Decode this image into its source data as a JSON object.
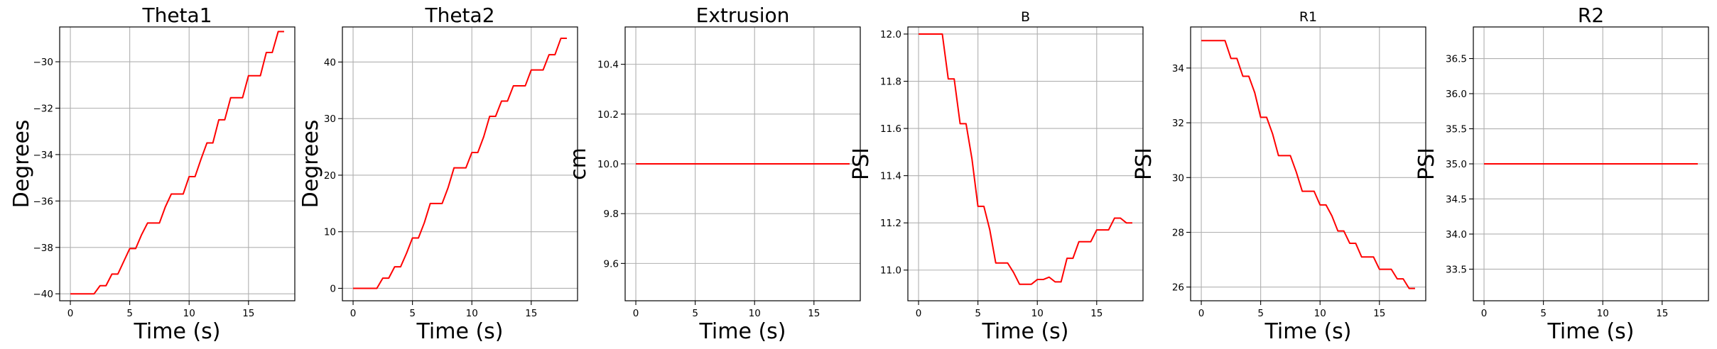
{
  "colors": {
    "series": "#ff0000",
    "grid": "#b0b0b0",
    "frame": "#000000"
  },
  "chart_data": [
    {
      "type": "line",
      "title": "Theta1",
      "xlabel": "Time (s)",
      "ylabel": "Degrees",
      "xlim": [
        -0.9,
        18.9
      ],
      "ylim": [
        -40.3,
        -28.5
      ],
      "xticks": [
        0,
        5,
        10,
        15
      ],
      "yticks": [
        -40,
        -38,
        -36,
        -34,
        -32,
        -30
      ],
      "grid": true,
      "series": [
        {
          "x": [
            0,
            1,
            2,
            2.5,
            3,
            3.5,
            4,
            4.5,
            5,
            5.5,
            6,
            6.5,
            7,
            7.5,
            8,
            8.5,
            9,
            9.5,
            10,
            10.5,
            11,
            11.5,
            12,
            12.5,
            13,
            13.5,
            14,
            14.5,
            15,
            15.5,
            16,
            16.5,
            17,
            17.5,
            18
          ],
          "y": [
            -40,
            -40,
            -40,
            -39.65,
            -39.65,
            -39.15,
            -39.15,
            -38.6,
            -38.05,
            -38.05,
            -37.45,
            -36.95,
            -36.95,
            -36.95,
            -36.25,
            -35.7,
            -35.7,
            -35.7,
            -34.95,
            -34.95,
            -34.2,
            -33.5,
            -33.5,
            -32.5,
            -32.5,
            -31.55,
            -31.55,
            -31.55,
            -30.6,
            -30.6,
            -30.6,
            -29.6,
            -29.6,
            -28.7,
            -28.7
          ]
        }
      ]
    },
    {
      "type": "line",
      "title": "Theta2",
      "xlabel": "Time (s)",
      "ylabel": "Degrees",
      "xlim": [
        -0.9,
        18.9
      ],
      "ylim": [
        -2.2,
        46.2
      ],
      "xticks": [
        0,
        5,
        10,
        15
      ],
      "yticks": [
        0,
        10,
        20,
        30,
        40
      ],
      "grid": true,
      "series": [
        {
          "x": [
            0,
            1,
            2,
            2.5,
            3,
            3.5,
            4,
            4.5,
            5,
            5.5,
            6,
            6.5,
            7,
            7.5,
            8,
            8.5,
            9,
            9.5,
            10,
            10.5,
            11,
            11.5,
            12,
            12.5,
            13,
            13.5,
            14,
            14.5,
            15,
            15.5,
            16,
            16.5,
            17,
            17.5,
            18
          ],
          "y": [
            0,
            0,
            0,
            1.8,
            1.8,
            3.8,
            3.8,
            6.2,
            8.9,
            8.9,
            11.6,
            15,
            15,
            15,
            17.8,
            21.3,
            21.3,
            21.3,
            24,
            24,
            26.8,
            30.4,
            30.4,
            33.1,
            33.1,
            35.8,
            35.8,
            35.8,
            38.6,
            38.6,
            38.6,
            41.3,
            41.3,
            44.2,
            44.2
          ]
        }
      ]
    },
    {
      "type": "line",
      "title": "Extrusion",
      "xlabel": "Time (s)",
      "ylabel": "cm",
      "xlim": [
        -0.9,
        18.9
      ],
      "ylim": [
        9.45,
        10.55
      ],
      "xticks": [
        0,
        5,
        10,
        15
      ],
      "yticks": [
        9.6,
        9.8,
        10.0,
        10.2,
        10.4
      ],
      "ytick_labels": [
        "9.6",
        "9.8",
        "10.0",
        "10.2",
        "10.4"
      ],
      "grid": true,
      "series": [
        {
          "x": [
            0,
            18
          ],
          "y": [
            10,
            10
          ]
        }
      ]
    },
    {
      "type": "line",
      "title": "B",
      "xlabel": "Time (s)",
      "ylabel": "PSI",
      "xlim": [
        -0.9,
        18.9
      ],
      "ylim": [
        10.87,
        12.03
      ],
      "xticks": [
        0,
        5,
        10,
        15
      ],
      "yticks": [
        11.0,
        11.2,
        11.4,
        11.6,
        11.8,
        12.0
      ],
      "ytick_labels": [
        "11.0",
        "11.2",
        "11.4",
        "11.6",
        "11.8",
        "12.0"
      ],
      "grid": true,
      "series": [
        {
          "x": [
            0,
            1,
            2,
            2.5,
            3,
            3.5,
            4,
            4.5,
            5,
            5.5,
            6,
            6.5,
            7,
            7.5,
            8,
            8.5,
            9,
            9.5,
            10,
            10.5,
            11,
            11.5,
            12,
            12.5,
            13,
            13.5,
            14,
            14.5,
            15,
            15.5,
            16,
            16.5,
            17,
            17.5,
            18
          ],
          "y": [
            12,
            12,
            12,
            11.81,
            11.81,
            11.62,
            11.62,
            11.47,
            11.27,
            11.27,
            11.17,
            11.03,
            11.03,
            11.03,
            10.99,
            10.94,
            10.94,
            10.94,
            10.96,
            10.96,
            10.97,
            10.95,
            10.95,
            11.05,
            11.05,
            11.12,
            11.12,
            11.12,
            11.17,
            11.17,
            11.17,
            11.22,
            11.22,
            11.2,
            11.2
          ]
        }
      ]
    },
    {
      "type": "line",
      "title": "R1",
      "xlabel": "Time (s)",
      "ylabel": "PSI",
      "xlim": [
        -0.9,
        18.9
      ],
      "ylim": [
        25.5,
        35.5
      ],
      "xticks": [
        0,
        5,
        10,
        15
      ],
      "yticks": [
        26,
        28,
        30,
        32,
        34
      ],
      "grid": true,
      "series": [
        {
          "x": [
            0,
            1,
            2,
            2.5,
            3,
            3.5,
            4,
            4.5,
            5,
            5.5,
            6,
            6.5,
            7,
            7.5,
            8,
            8.5,
            9,
            9.5,
            10,
            10.5,
            11,
            11.5,
            12,
            12.5,
            13,
            13.5,
            14,
            14.5,
            15,
            15.5,
            16,
            16.5,
            17,
            17.5,
            18
          ],
          "y": [
            35,
            35,
            35,
            34.35,
            34.35,
            33.7,
            33.7,
            33.1,
            32.2,
            32.2,
            31.6,
            30.8,
            30.8,
            30.8,
            30.2,
            29.5,
            29.5,
            29.5,
            29,
            29,
            28.6,
            28.05,
            28.05,
            27.6,
            27.6,
            27.1,
            27.1,
            27.1,
            26.65,
            26.65,
            26.65,
            26.3,
            26.3,
            25.95,
            25.95
          ]
        }
      ]
    },
    {
      "type": "line",
      "title": "R2",
      "xlabel": "Time (s)",
      "ylabel": "PSI",
      "xlim": [
        -0.9,
        18.9
      ],
      "ylim": [
        33.05,
        36.95
      ],
      "xticks": [
        0,
        5,
        10,
        15
      ],
      "yticks": [
        33.5,
        34.0,
        34.5,
        35.0,
        35.5,
        36.0,
        36.5
      ],
      "ytick_labels": [
        "33.5",
        "34.0",
        "34.5",
        "35.0",
        "35.5",
        "36.0",
        "36.5"
      ],
      "grid": true,
      "series": [
        {
          "x": [
            0,
            18
          ],
          "y": [
            35,
            35
          ]
        }
      ]
    }
  ]
}
